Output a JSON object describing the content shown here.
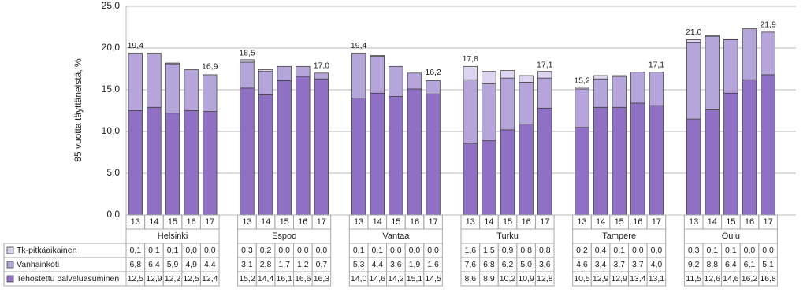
{
  "chart_data": {
    "type": "stacked_bar",
    "y_label": "85 vuotta täyttäneistä, %",
    "groups": [
      "Helsinki",
      "Espoo",
      "Vantaa",
      "Turku",
      "Tampere",
      "Oulu"
    ],
    "categories": [
      "13",
      "14",
      "15",
      "16",
      "17",
      "13",
      "14",
      "15",
      "16",
      "17",
      "13",
      "14",
      "15",
      "16",
      "17",
      "13",
      "14",
      "15",
      "16",
      "17",
      "13",
      "14",
      "15",
      "16",
      "17",
      "13",
      "14",
      "15",
      "16",
      "17"
    ],
    "ylim": [
      0,
      25
    ],
    "yticks": [
      {
        "value": 0,
        "label": "0,0"
      },
      {
        "value": 5,
        "label": "5,0"
      },
      {
        "value": 10,
        "label": "10,0"
      },
      {
        "value": 15,
        "label": "15,0"
      },
      {
        "value": 20,
        "label": "20,0"
      },
      {
        "value": 25,
        "label": "25,0"
      }
    ],
    "grid": true,
    "series": [
      {
        "name": "Tk-pitkäaikainen",
        "color": "#ddd5ef",
        "values": [
          0.1,
          0.1,
          0.1,
          0.0,
          0.0,
          0.3,
          0.2,
          0.0,
          0.0,
          0.0,
          0.1,
          0.1,
          0.0,
          0.0,
          0.0,
          1.6,
          1.5,
          0.9,
          0.8,
          0.8,
          0.2,
          0.4,
          0.1,
          0.0,
          0.0,
          0.3,
          0.1,
          0.1,
          0.0,
          0.0
        ],
        "value_labels": [
          "0,1",
          "0,1",
          "0,1",
          "0,0",
          "0,0",
          "0,3",
          "0,2",
          "0,0",
          "0,0",
          "0,0",
          "0,1",
          "0,1",
          "0,0",
          "0,0",
          "0,0",
          "1,6",
          "1,5",
          "0,9",
          "0,8",
          "0,8",
          "0,2",
          "0,4",
          "0,1",
          "0,0",
          "0,0",
          "0,3",
          "0,1",
          "0,1",
          "0,0",
          "0,0"
        ]
      },
      {
        "name": "Vanhainkoti",
        "color": "#b5a5da",
        "values": [
          6.8,
          6.4,
          5.9,
          4.9,
          4.4,
          3.1,
          2.8,
          1.7,
          1.2,
          0.7,
          5.3,
          4.4,
          3.6,
          1.9,
          1.6,
          7.6,
          6.8,
          6.2,
          5.0,
          3.6,
          4.6,
          3.4,
          3.7,
          3.7,
          4.0,
          9.2,
          8.8,
          6.4,
          6.1,
          5.1
        ],
        "value_labels": [
          "6,8",
          "6,4",
          "5,9",
          "4,9",
          "4,4",
          "3,1",
          "2,8",
          "1,7",
          "1,2",
          "0,7",
          "5,3",
          "4,4",
          "3,6",
          "1,9",
          "1,6",
          "7,6",
          "6,8",
          "6,2",
          "5,0",
          "3,6",
          "4,6",
          "3,4",
          "3,7",
          "3,7",
          "4,0",
          "9,2",
          "8,8",
          "6,4",
          "6,1",
          "5,1"
        ]
      },
      {
        "name": "Tehostettu palveluasuminen",
        "color": "#8f70c5",
        "values": [
          12.5,
          12.9,
          12.2,
          12.5,
          12.4,
          15.2,
          14.4,
          16.1,
          16.6,
          16.3,
          14.0,
          14.6,
          14.2,
          15.1,
          14.5,
          8.6,
          8.9,
          10.2,
          10.9,
          12.8,
          10.5,
          12.9,
          12.9,
          13.4,
          13.1,
          11.5,
          12.6,
          14.6,
          16.2,
          16.8
        ],
        "value_labels": [
          "12,5",
          "12,9",
          "12,2",
          "12,5",
          "12,4",
          "15,2",
          "14,4",
          "16,1",
          "16,6",
          "16,3",
          "14,0",
          "14,6",
          "14,2",
          "15,1",
          "14,5",
          "8,6",
          "8,9",
          "10,2",
          "10,9",
          "12,8",
          "10,5",
          "12,9",
          "12,9",
          "13,4",
          "13,1",
          "11,5",
          "12,6",
          "14,6",
          "16,2",
          "16,8"
        ]
      }
    ],
    "totals": {
      "values": [
        19.4,
        null,
        null,
        null,
        16.9,
        18.5,
        null,
        null,
        null,
        17.0,
        19.4,
        null,
        null,
        null,
        16.2,
        17.8,
        null,
        null,
        null,
        17.1,
        15.2,
        null,
        null,
        null,
        17.1,
        21.0,
        null,
        null,
        null,
        21.9
      ],
      "value_labels": [
        "19,4",
        null,
        null,
        null,
        "16,9",
        "18,5",
        null,
        null,
        null,
        "17,0",
        "19,4",
        null,
        null,
        null,
        "16,2",
        "17,8",
        null,
        null,
        null,
        "17,1",
        "15,2",
        null,
        null,
        null,
        "17,1",
        "21,0",
        null,
        null,
        null,
        "21,9"
      ]
    }
  }
}
